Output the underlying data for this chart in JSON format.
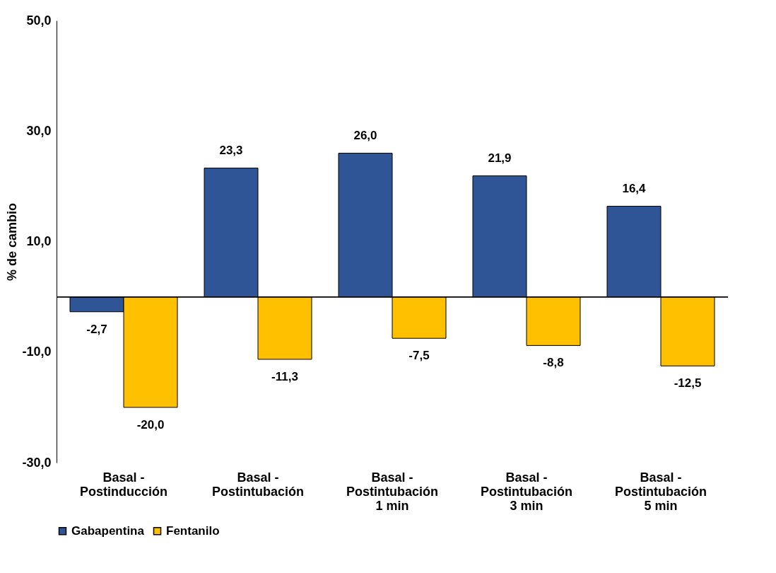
{
  "chart_data": {
    "type": "bar",
    "ylabel": "% de cambio",
    "categories": [
      "Basal -\nPostinducción",
      "Basal -\nPostintubación",
      "Basal -\nPostintubación\n1 min",
      "Basal -\nPostintubación\n3 min",
      "Basal -\nPostintubación\n5 min"
    ],
    "series": [
      {
        "name": "Gabapentina",
        "color": "#2f5597",
        "values": [
          -2.7,
          23.3,
          26.0,
          21.9,
          16.4
        ],
        "value_labels": [
          "-2,7",
          "23,3",
          "26,0",
          "21,9",
          "16,4"
        ]
      },
      {
        "name": "Fentanilo",
        "color": "#ffc000",
        "values": [
          -20.0,
          -11.3,
          -7.5,
          -8.8,
          -12.5
        ],
        "value_labels": [
          "-20,0",
          "-11,3",
          "-7,5",
          "-8,8",
          "-12,5"
        ]
      }
    ],
    "ylim": [
      -30,
      50
    ],
    "yticks": [
      {
        "value": -30,
        "label": "-30,0"
      },
      {
        "value": -10,
        "label": "-10,0"
      },
      {
        "value": 10,
        "label": "10,0"
      },
      {
        "value": 30,
        "label": "30,0"
      },
      {
        "value": 50,
        "label": "50,0"
      }
    ],
    "grid": false,
    "legend": "bottom"
  }
}
